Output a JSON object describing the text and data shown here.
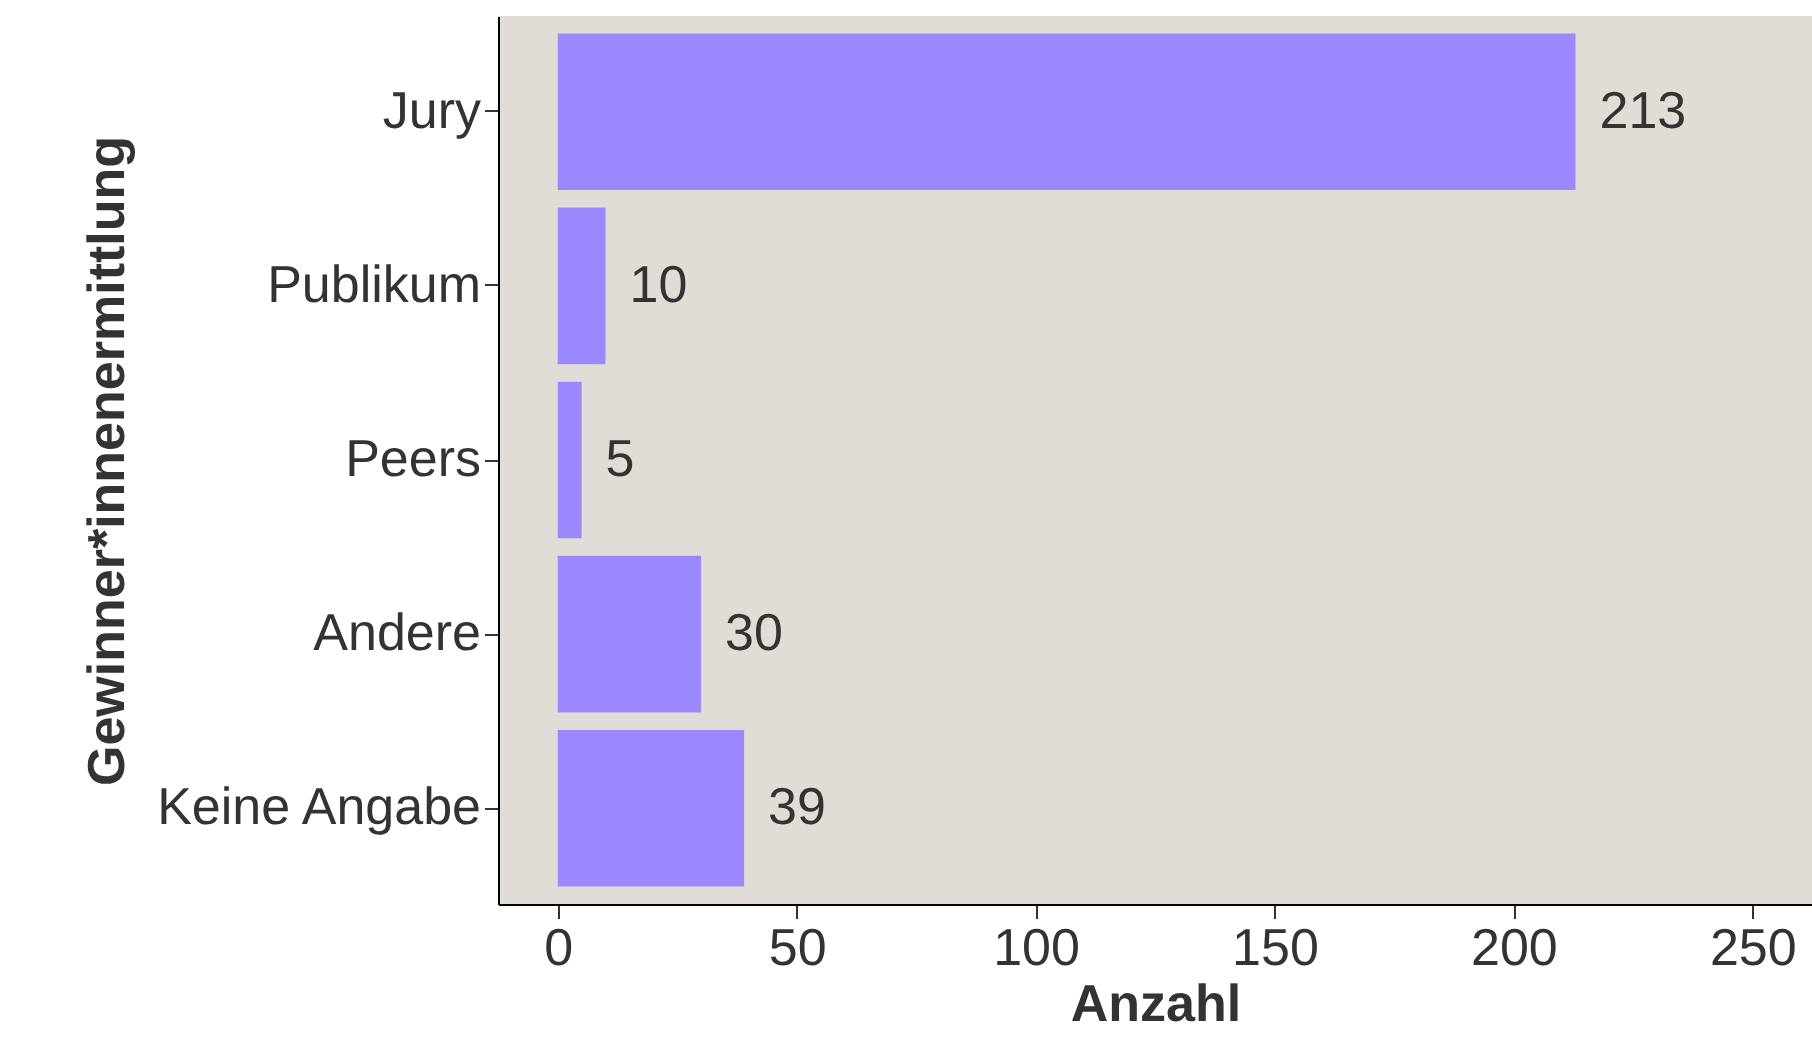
{
  "chart_data": {
    "type": "bar",
    "orientation": "horizontal",
    "xlabel": "Anzahl",
    "ylabel": "Gewinner*innenermittlung",
    "categories": [
      "Jury",
      "Publikum",
      "Peers",
      "Andere",
      "Keine Angabe"
    ],
    "values": [
      213,
      10,
      5,
      30,
      39
    ],
    "color": "#9b8aff",
    "xlim": [
      -12.5,
      262.5
    ],
    "xticks": [
      0,
      50,
      100,
      150,
      200,
      250
    ],
    "data_labels": true,
    "grid": false
  }
}
